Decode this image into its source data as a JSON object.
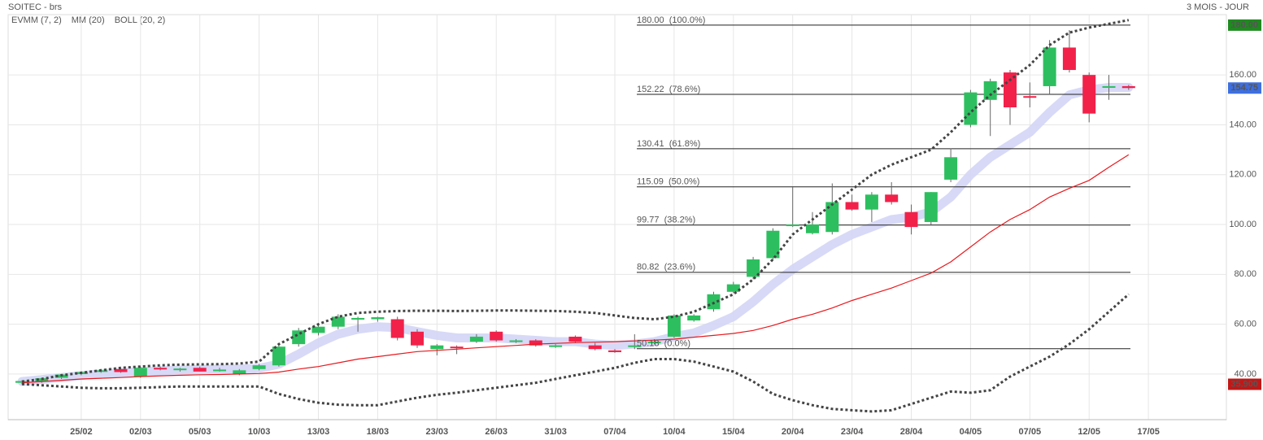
{
  "header": {
    "title": "SOITEC - brs",
    "period": "3 MOIS - JOUR"
  },
  "chart_data": {
    "type": "candlestick",
    "categories": [
      null,
      null,
      null,
      "25/02",
      null,
      null,
      "02/03",
      null,
      null,
      "05/03",
      null,
      null,
      "10/03",
      null,
      null,
      "13/03",
      null,
      null,
      "18/03",
      null,
      null,
      "23/03",
      null,
      null,
      "26/03",
      null,
      null,
      "31/03",
      null,
      null,
      "07/04",
      null,
      null,
      "10/04",
      null,
      null,
      "15/04",
      null,
      null,
      "20/04",
      null,
      null,
      "23/04",
      null,
      null,
      "28/04",
      null,
      null,
      "04/05",
      null,
      null,
      "07/05",
      null,
      null,
      "12/05",
      null,
      null,
      "17/05"
    ],
    "open": [
      36.5,
      37,
      38.5,
      40,
      41,
      42,
      39,
      42.5,
      42,
      42.5,
      41.8,
      40,
      42,
      43.5,
      52,
      56.5,
      59,
      62,
      62,
      62,
      57,
      50,
      51,
      53,
      57,
      53.5,
      53.5,
      51,
      55,
      51.5,
      49.5,
      51,
      53,
      55,
      61.5,
      66,
      73,
      79,
      86.5,
      99.8,
      96.5,
      97,
      109,
      106,
      112,
      105,
      101,
      118,
      140,
      150,
      161,
      151.5,
      155.5,
      171,
      160,
      155,
      155.5,
      null
    ],
    "high": [
      37.5,
      38.5,
      40,
      41,
      42,
      42.5,
      43,
      43,
      42.5,
      43,
      42.5,
      42,
      44,
      52,
      58.5,
      60,
      64,
      63,
      63,
      63,
      58,
      52,
      51.5,
      56,
      57.5,
      54,
      54,
      52,
      55.5,
      52.5,
      50,
      56,
      54,
      64,
      64,
      73,
      77,
      87,
      98.5,
      115,
      105,
      116.5,
      112,
      113,
      117,
      108,
      113,
      130.5,
      154,
      158.5,
      162,
      157,
      174,
      178,
      161,
      160,
      156,
      null
    ],
    "low": [
      35.9,
      36.5,
      38,
      39.5,
      40.5,
      40.5,
      38.5,
      41.5,
      41,
      41,
      41,
      39.5,
      41.5,
      43,
      51,
      55.5,
      58,
      57,
      61,
      53.5,
      50.5,
      47.5,
      48,
      52.5,
      53,
      52.5,
      51,
      50.5,
      52.5,
      49.5,
      48.5,
      50,
      52,
      54.5,
      61,
      65,
      72.5,
      78,
      85.5,
      99,
      96,
      96,
      105.5,
      101,
      108,
      96,
      100,
      117,
      139,
      135.5,
      140,
      147,
      152,
      161,
      141,
      150,
      154,
      null
    ],
    "close": [
      37.2,
      38.3,
      39.8,
      40.8,
      41.5,
      40.8,
      42.5,
      42,
      42.2,
      41,
      41.8,
      41.5,
      43.5,
      51,
      57.5,
      59,
      63,
      62.5,
      62.8,
      54.5,
      51.5,
      51.5,
      50.5,
      55,
      53.5,
      53.5,
      51.5,
      51.5,
      53,
      50,
      48.8,
      51.5,
      53,
      63.5,
      63.5,
      72,
      76,
      86,
      97.5,
      100,
      100,
      109,
      106,
      112,
      109,
      99,
      113,
      127,
      153,
      157.5,
      147,
      151,
      171,
      162,
      144.5,
      155.5,
      154.75,
      null
    ],
    "up_color": "#2dbf5f",
    "down_color": "#f2214a",
    "series": [
      {
        "name": "EVMM (7, 2)",
        "color": "#d3d5f6",
        "text_color": "#5b62d6",
        "values": [
          37,
          37.8,
          38.6,
          39.4,
          40.1,
          40.5,
          41,
          41.3,
          41.6,
          41.8,
          42,
          42,
          42.3,
          44,
          48,
          52.5,
          56,
          58,
          59,
          58.6,
          57,
          55.5,
          54.5,
          54.5,
          54.5,
          54,
          53.5,
          53,
          53,
          52,
          51.5,
          52,
          53,
          55,
          56.5,
          59.5,
          63,
          69,
          76,
          82,
          87,
          92,
          96,
          99,
          102,
          103,
          105,
          111,
          120,
          127,
          132,
          137,
          145,
          152,
          154,
          155,
          155,
          null
        ]
      },
      {
        "name": "MM (20)",
        "color": "#e8191e",
        "text_color": "#e8191e",
        "values": [
          36.5,
          37,
          37.5,
          38,
          38.3,
          38.6,
          39,
          39.3,
          39.5,
          39.7,
          39.8,
          40,
          40.2,
          40.8,
          42,
          43,
          44.5,
          46,
          47,
          48,
          49,
          49.5,
          50,
          50.5,
          51,
          51.5,
          52,
          52.3,
          52.6,
          52.8,
          53,
          53.3,
          53.6,
          54,
          54.8,
          55.5,
          56.3,
          57.5,
          59.5,
          62,
          64,
          66.5,
          69.5,
          72,
          74.5,
          77.5,
          80.5,
          85,
          91,
          97,
          102,
          106,
          111,
          114.5,
          117.7,
          123,
          128,
          null
        ]
      }
    ],
    "bollinger": {
      "name": "BOLL (20, 2)",
      "color": "#444444",
      "upper": [
        37,
        38,
        39.5,
        40.5,
        41.5,
        42.5,
        43,
        43.5,
        43.8,
        43.9,
        44,
        44.2,
        45,
        52,
        56,
        60,
        63,
        64.5,
        65,
        65.3,
        65.4,
        65.4,
        65.3,
        65.4,
        65.5,
        65.5,
        65.4,
        65.3,
        65,
        64.5,
        63.5,
        62.5,
        62,
        63,
        65,
        68.5,
        72,
        78,
        86,
        96,
        102,
        108,
        114,
        120,
        124,
        127,
        130,
        137,
        145,
        152,
        158,
        164,
        172,
        177,
        179,
        180.5,
        182,
        null
      ],
      "lower": [
        36,
        35.5,
        35,
        34.5,
        34.3,
        34.3,
        34.5,
        34.8,
        35,
        35,
        35,
        35,
        35,
        32,
        30,
        28.5,
        27.7,
        27.5,
        27.5,
        29,
        30.5,
        31.7,
        32.5,
        33.5,
        34.5,
        35.5,
        36.5,
        38,
        39.5,
        41,
        42.5,
        44.5,
        46,
        46,
        45,
        43,
        41,
        37,
        32,
        29.5,
        27.5,
        26,
        25.5,
        25,
        25.5,
        28,
        30.5,
        33,
        32.5,
        33.5,
        39,
        43,
        47,
        52,
        58,
        65,
        72,
        null
      ]
    },
    "fibonacci": [
      {
        "value": 180,
        "label": "180.00  (100.0%)"
      },
      {
        "value": 152.22,
        "label": "152.22  (78.6%)"
      },
      {
        "value": 130.41,
        "label": "130.41  (61.8%)"
      },
      {
        "value": 115.09,
        "label": "115.09  (50.0%)"
      },
      {
        "value": 99.77,
        "label": "99.77  (38.2%)"
      },
      {
        "value": 80.82,
        "label": "80.82  (23.6%)"
      },
      {
        "value": 50.18,
        "label": "50.18  (0.0%)"
      }
    ],
    "markers": [
      {
        "value": 180,
        "label": "180.00",
        "color": "#1f8a1f"
      },
      {
        "value": 154.75,
        "label": "154.75",
        "color": "#3d6fe0"
      },
      {
        "value": 35.9,
        "label": "35.900",
        "color": "#c21717"
      }
    ],
    "ylim": [
      21.7,
      184.2
    ],
    "yticks": [
      {
        "value": 40,
        "label": "40.00"
      },
      {
        "value": 60,
        "label": "60.00"
      },
      {
        "value": 80,
        "label": "80.00"
      },
      {
        "value": 100,
        "label": "100.00"
      },
      {
        "value": 120,
        "label": "120.00"
      },
      {
        "value": 140,
        "label": "140.00"
      },
      {
        "value": 160,
        "label": "160.00"
      }
    ],
    "grid": true
  }
}
